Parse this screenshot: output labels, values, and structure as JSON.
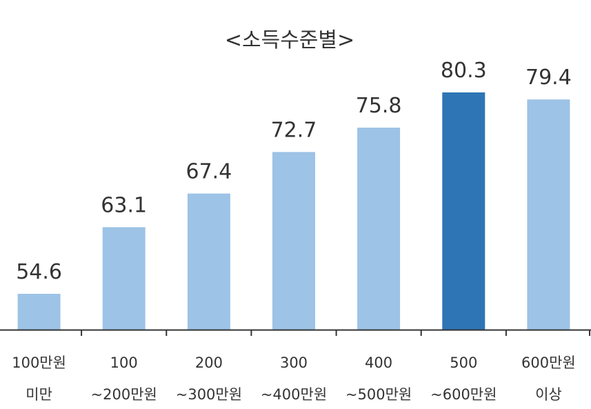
{
  "chart_data": {
    "type": "bar",
    "title": "<소득수준별>",
    "categories": [
      [
        "100만원",
        "미만"
      ],
      [
        "100",
        "~200만원"
      ],
      [
        "200",
        "~300만원"
      ],
      [
        "300",
        "~400만원"
      ],
      [
        "400",
        "~500만원"
      ],
      [
        "500",
        "~600만원"
      ],
      [
        "600만원",
        "이상"
      ]
    ],
    "values": [
      54.6,
      63.1,
      67.4,
      72.7,
      75.8,
      80.3,
      79.4
    ],
    "value_labels": [
      "54.6",
      "63.1",
      "67.4",
      "72.7",
      "75.8",
      "80.3",
      "79.4"
    ],
    "highlight_index": 5,
    "colors": {
      "bar": "#9DC3E6",
      "highlight": "#2E75B6",
      "axis": "#333333",
      "text": "#333333"
    },
    "ylim": [
      50,
      82
    ],
    "grid": false,
    "legend": false
  }
}
